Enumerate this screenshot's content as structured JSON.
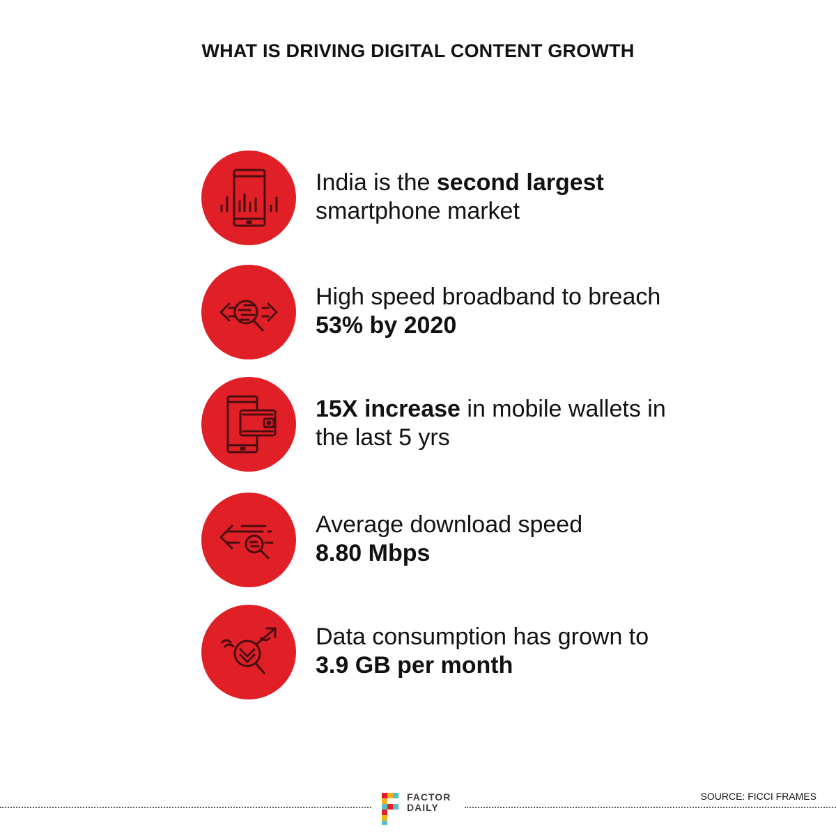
{
  "title": "WHAT IS DRIVING DIGITAL CONTENT GROWTH",
  "accent_color": "#e01f26",
  "items": [
    {
      "icon": "smartphone-signal-icon",
      "pre": "India is the ",
      "bold": "second largest",
      "post": "",
      "line2": "smartphone market"
    },
    {
      "icon": "search-data-arrows-icon",
      "pre": "High speed broadband to breach",
      "bold": "",
      "post": "",
      "line2_bold": "53% by 2020"
    },
    {
      "icon": "mobile-wallet-icon",
      "pre": "",
      "bold": "15X increase",
      "post": " in mobile wallets in",
      "line2": "the last 5 yrs"
    },
    {
      "icon": "download-search-icon",
      "pre": "Average download speed",
      "bold": "",
      "post": "",
      "line2_bold": "8.80 Mbps"
    },
    {
      "icon": "data-growth-icon",
      "pre": "Data consumption has grown to",
      "bold": "",
      "post": "",
      "line2_bold": "3.9 GB per month"
    }
  ],
  "footer": {
    "logo_line1": "FACTOR",
    "logo_line2": "DAILY",
    "source": "SOURCE: FICCI FRAMES"
  }
}
